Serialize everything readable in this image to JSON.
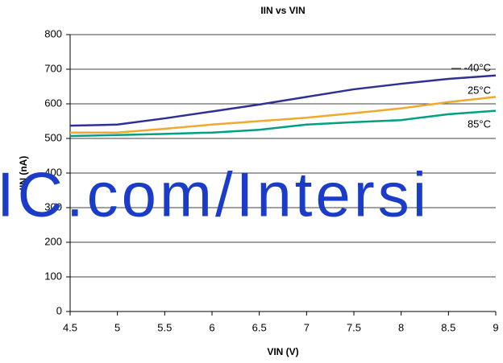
{
  "chart_data": {
    "type": "line",
    "title": "IIN vs VIN",
    "x_label": "VIN (V)",
    "y_label": "IIN (nA)",
    "watermark": "IC.com/Intersi",
    "x": [
      4.5,
      5,
      5.5,
      6,
      6.5,
      7,
      7.5,
      8,
      8.5,
      9
    ],
    "xlim": [
      4.5,
      9
    ],
    "xticks": [
      4.5,
      5,
      5.5,
      6,
      6.5,
      7,
      7.5,
      8,
      8.5,
      9
    ],
    "ylim": [
      0,
      800
    ],
    "yticks": [
      0,
      100,
      200,
      300,
      400,
      500,
      600,
      700,
      800
    ],
    "grid": true,
    "series": [
      {
        "name": "-40°C",
        "color": "#2e3192",
        "values": [
          537,
          540,
          558,
          578,
          598,
          620,
          642,
          658,
          672,
          682
        ]
      },
      {
        "name": "25°C",
        "color": "#f0a830",
        "values": [
          517,
          517,
          528,
          540,
          550,
          560,
          573,
          587,
          605,
          620
        ]
      },
      {
        "name": "85°C",
        "color": "#00a080",
        "values": [
          507,
          510,
          513,
          517,
          525,
          540,
          547,
          553,
          570,
          580
        ]
      }
    ]
  }
}
